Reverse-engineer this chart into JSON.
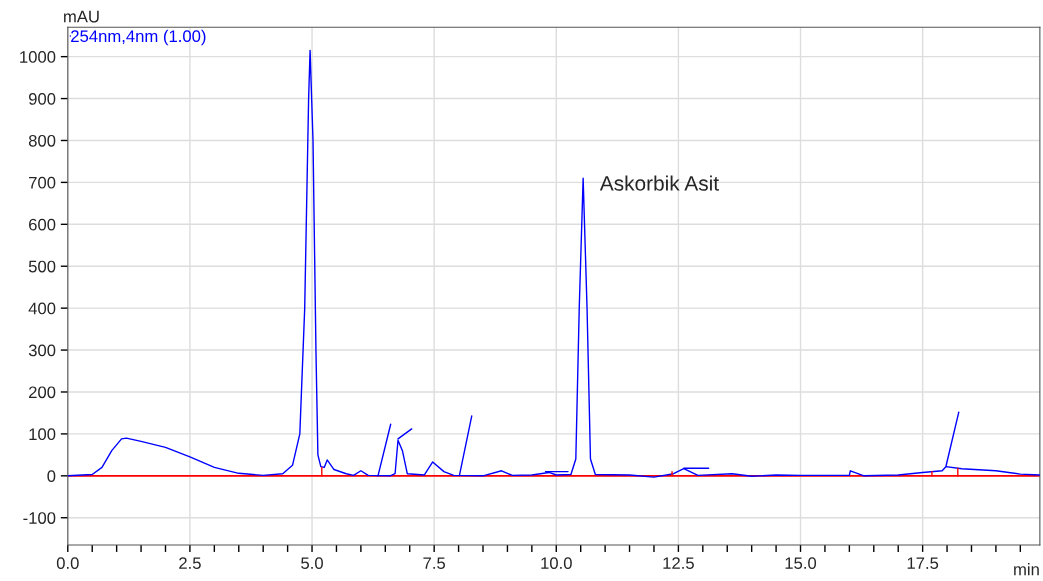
{
  "chart_data": {
    "type": "line",
    "xlabel": "min",
    "ylabel": "mAU",
    "xlim": [
      0,
      19.9
    ],
    "ylim": [
      -165,
      1070
    ],
    "xticks": [
      {
        "value": 0,
        "label": "0.0"
      },
      {
        "value": 0.5,
        "label": null
      },
      {
        "value": 1,
        "label": null
      },
      {
        "value": 1.5,
        "label": null
      },
      {
        "value": 2,
        "label": null
      },
      {
        "value": 2.5,
        "label": "2.5"
      },
      {
        "value": 3,
        "label": null
      },
      {
        "value": 3.5,
        "label": null
      },
      {
        "value": 4,
        "label": null
      },
      {
        "value": 4.5,
        "label": null
      },
      {
        "value": 5,
        "label": "5.0"
      },
      {
        "value": 5.5,
        "label": null
      },
      {
        "value": 6,
        "label": null
      },
      {
        "value": 6.5,
        "label": null
      },
      {
        "value": 7,
        "label": null
      },
      {
        "value": 7.5,
        "label": "7.5"
      },
      {
        "value": 8,
        "label": null
      },
      {
        "value": 8.5,
        "label": null
      },
      {
        "value": 9,
        "label": null
      },
      {
        "value": 9.5,
        "label": null
      },
      {
        "value": 10,
        "label": "10.0"
      },
      {
        "value": 10.5,
        "label": null
      },
      {
        "value": 11,
        "label": null
      },
      {
        "value": 11.5,
        "label": null
      },
      {
        "value": 12,
        "label": null
      },
      {
        "value": 12.5,
        "label": "12.5"
      },
      {
        "value": 13,
        "label": null
      },
      {
        "value": 13.5,
        "label": null
      },
      {
        "value": 14,
        "label": null
      },
      {
        "value": 14.5,
        "label": null
      },
      {
        "value": 15,
        "label": "15.0"
      },
      {
        "value": 15.5,
        "label": null
      },
      {
        "value": 16,
        "label": null
      },
      {
        "value": 16.5,
        "label": null
      },
      {
        "value": 17,
        "label": null
      },
      {
        "value": 17.5,
        "label": "17.5"
      },
      {
        "value": 18,
        "label": null
      },
      {
        "value": 18.5,
        "label": null
      },
      {
        "value": 19,
        "label": null
      },
      {
        "value": 19.5,
        "label": null
      }
    ],
    "yticks": [
      -100,
      0,
      100,
      200,
      300,
      400,
      500,
      600,
      700,
      800,
      900,
      1000
    ],
    "grid": true,
    "legend": "top left",
    "marker": "none",
    "line_style": "solid",
    "series": [
      {
        "name": "254nm,4nm (1.00)",
        "color": "#0000ff",
        "x": [
          0,
          0.5,
          0.7,
          0.9,
          1.1,
          1.2,
          1.5,
          2.0,
          2.5,
          3.0,
          3.5,
          4.0,
          4.4,
          4.6,
          4.75,
          4.85,
          4.93,
          4.96,
          5.02,
          5.08,
          5.12,
          5.18,
          5.25,
          5.31,
          5.45,
          5.7,
          5.85,
          6.0,
          6.15,
          6.6,
          6.7,
          6.76,
          6.85,
          6.95,
          7.3,
          7.47,
          7.7,
          7.9,
          8.5,
          8.88,
          9.1,
          9.5,
          9.85,
          10.0,
          10.3,
          10.4,
          10.47,
          10.55,
          10.63,
          10.7,
          10.8,
          11.5,
          12.0,
          12.4,
          12.61,
          12.9,
          13.6,
          14.0,
          14.5,
          15.0,
          16.0,
          16.02,
          16.3,
          17.0,
          17.5,
          17.9,
          17.98,
          18.3,
          19.0,
          19.5,
          19.9
        ],
        "values": [
          0,
          3,
          20,
          60,
          88,
          90,
          82,
          68,
          45,
          20,
          6,
          1,
          5,
          25,
          100,
          400,
          900,
          1015,
          800,
          300,
          50,
          22,
          20,
          38,
          15,
          5,
          1,
          12,
          1,
          0,
          5,
          85,
          60,
          5,
          2,
          33,
          10,
          1,
          0,
          12,
          1,
          2,
          8,
          2,
          3,
          40,
          400,
          710,
          400,
          40,
          3,
          2,
          -3,
          5,
          17,
          1,
          5,
          -1,
          2,
          1,
          1,
          12,
          0,
          2,
          8,
          12,
          22,
          17,
          12,
          4,
          2
        ]
      },
      {
        "color": "#0000ff",
        "x": [
          6.35,
          6.61,
          null,
          6.76,
          7.04,
          null,
          8.02,
          8.27,
          null,
          9.78,
          10.24,
          null,
          12.61,
          13.12,
          null,
          17.98,
          18.24
        ],
        "values": [
          0,
          123,
          null,
          88,
          112,
          null,
          2,
          143,
          null,
          10,
          10,
          null,
          18,
          18,
          null,
          24,
          152
        ]
      },
      {
        "color": "#ff0000",
        "x": [
          5.2,
          5.2,
          null,
          12.37,
          12.37,
          null,
          17.69,
          17.69,
          null,
          18.22,
          18.22
        ],
        "values": [
          0,
          20,
          null,
          0,
          10,
          null,
          0,
          10,
          null,
          0,
          18
        ]
      }
    ],
    "ref_lines": [
      {
        "axis": "y",
        "value": 0,
        "color": "#ff0000"
      }
    ],
    "annotations": [
      {
        "text": "Askorbik Asit",
        "x": 10.55,
        "y": 710
      }
    ]
  }
}
